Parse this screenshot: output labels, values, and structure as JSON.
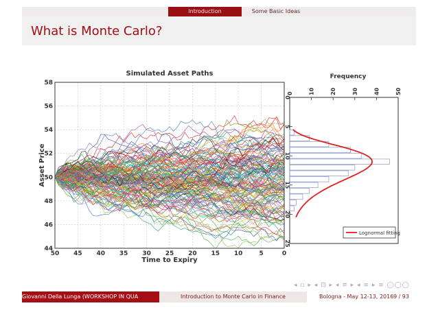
{
  "header": {
    "sections": [
      {
        "label": "Introduction",
        "active": true
      },
      {
        "label": "Some Basic Ideas",
        "active": false
      }
    ]
  },
  "frame_title": "What is Monte Carlo?",
  "footer": {
    "author": "Giovanni Della Lunga (WORKSHOP IN QUA",
    "talk": "Introduction to Monte Carlo in Finance",
    "date": "Bologna - May 12-13, 2016",
    "page": "9 / 93"
  },
  "nav_symbols": "◂ ▫ ▸ ◂ ⊡ ▸ ◂ ≡ ▸ ◂ ≡ ▸ ≡ ◯◯◯",
  "colors": {
    "accent": "#a50f14",
    "fit_line": "#e02020",
    "hist_bar": "#9aa0d0"
  },
  "chart_data": [
    {
      "type": "line",
      "title": "Simulated Asset Paths",
      "xlabel": "Time to Expiry",
      "ylabel": "Asset Price",
      "xlim": [
        50,
        0
      ],
      "ylim": [
        44,
        58
      ],
      "xticks": [
        50,
        45,
        40,
        35,
        30,
        25,
        20,
        15,
        10,
        5,
        0
      ],
      "yticks": [
        44,
        46,
        48,
        50,
        52,
        54,
        56,
        58
      ],
      "grid": true,
      "start_value": 50,
      "paths": 300,
      "spread_at_expiry": [
        44.5,
        56.5
      ]
    },
    {
      "type": "bar",
      "orientation": "horizontal",
      "title": "Frequency",
      "x_ticks": [
        0,
        10,
        20,
        30,
        40,
        50
      ],
      "y_ticks": [
        0,
        5,
        10,
        15,
        20,
        25
      ],
      "xlim": [
        0,
        50
      ],
      "ylim": [
        0,
        25
      ],
      "bins": [
        {
          "y": 6,
          "v": 2
        },
        {
          "y": 7,
          "v": 9
        },
        {
          "y": 8,
          "v": 18
        },
        {
          "y": 9,
          "v": 28
        },
        {
          "y": 10,
          "v": 33
        },
        {
          "y": 11,
          "v": 46
        },
        {
          "y": 12,
          "v": 30
        },
        {
          "y": 13,
          "v": 27
        },
        {
          "y": 14,
          "v": 18
        },
        {
          "y": 15,
          "v": 13
        },
        {
          "y": 16,
          "v": 9
        },
        {
          "y": 17,
          "v": 6
        },
        {
          "y": 18,
          "v": 3
        },
        {
          "y": 19,
          "v": 2
        }
      ],
      "legend": "Lognormal fitting",
      "legend_position": "bottom-right",
      "fit": {
        "peak_y": 11,
        "peak_value": 38
      }
    }
  ]
}
